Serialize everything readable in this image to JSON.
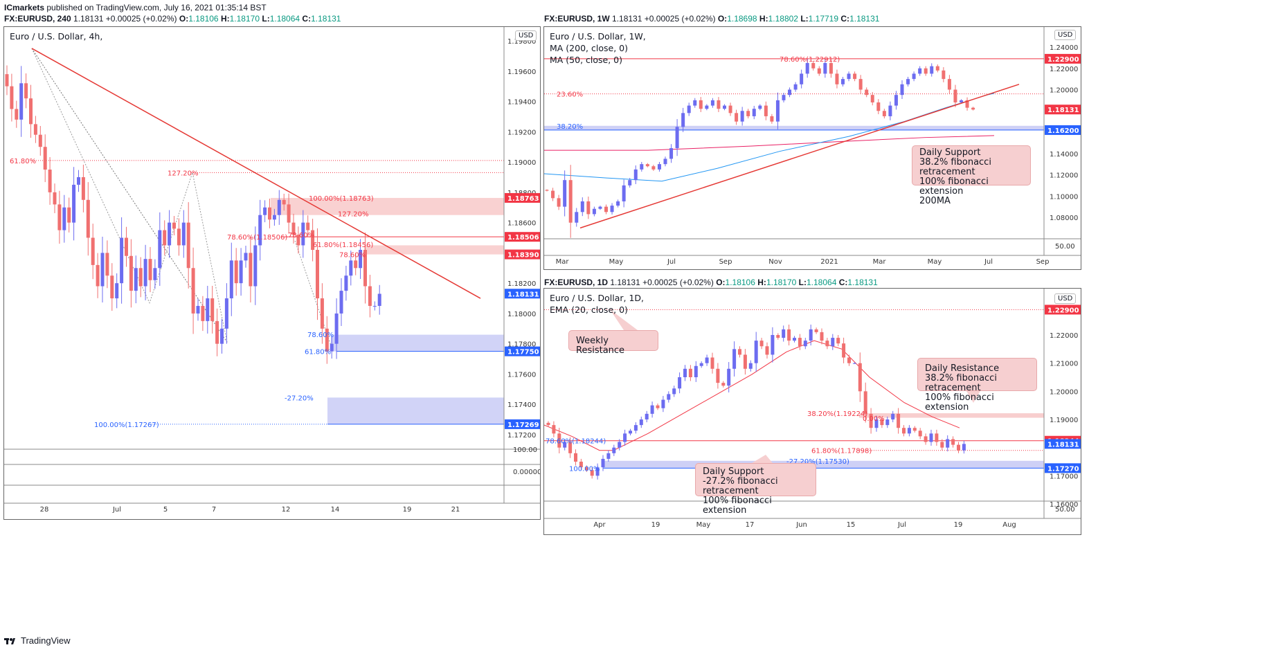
{
  "publisher": {
    "author": "ICmarkets",
    "text": "published on TradingView.com, July 16, 2021 01:35:14 BST"
  },
  "footer": {
    "brand": "TradingView"
  },
  "colors": {
    "up": "#6c6cf0",
    "down": "#f07070",
    "trend": "#e53935",
    "fibRed": "#f23645",
    "fibBlue": "#2962ff",
    "ma200": "#e91e63",
    "ma50": "#2196f3",
    "zoneBlue": "#c5c8f5",
    "zoneRed": "#f7c5c5"
  },
  "chart_data": [
    {
      "id": "h4",
      "type": "candlestick",
      "header": {
        "symbol": "FX:EURUSD, 240",
        "last": "1.18131",
        "change": "+0.00025 (+0.02%)",
        "o": "1.18106",
        "h": "1.18170",
        "l": "1.18064",
        "c": "1.18131"
      },
      "title": "Euro / U.S. Dollar, 4h,",
      "currency": "USD",
      "ylim": [
        1.1708,
        1.1988
      ],
      "y_ticks": [
        "1.19800",
        "1.19600",
        "1.19400",
        "1.19200",
        "1.19000",
        "1.18800",
        "1.18600",
        "1.18200",
        "1.18000",
        "1.17800",
        "1.17600",
        "1.17400",
        "1.17200"
      ],
      "x_ticks": [
        "28",
        "Jul",
        "5",
        "7",
        "12",
        "14",
        "19",
        "21"
      ],
      "price_tags": [
        {
          "value": 1.18763,
          "label": "1.18763",
          "color": "#f23645"
        },
        {
          "value": 1.18506,
          "label": "1.18506",
          "color": "#f23645"
        },
        {
          "value": 1.1839,
          "label": "1.18390",
          "color": "#f23645"
        },
        {
          "value": 1.18131,
          "label": "1.18131",
          "color": "#2962ff"
        },
        {
          "value": 1.1775,
          "label": "1.17750",
          "color": "#2962ff"
        },
        {
          "value": 1.17269,
          "label": "1.17269",
          "color": "#2962ff"
        }
      ],
      "fib_labels": [
        "61.80%",
        "127.20%",
        "100.00%(1.18763)",
        "127.20%",
        "78.60%(1.18506)",
        "78.60%",
        "61.80%(1.18456)",
        "78.60%",
        "78.60%",
        "61.80%",
        "-27.20%",
        "100.00%(1.17267)"
      ],
      "sub_axis": [
        "100.00",
        "0.00000"
      ],
      "closes": [
        1.195,
        1.1935,
        1.1928,
        1.1952,
        1.1942,
        1.1925,
        1.1918,
        1.191,
        1.1895,
        1.188,
        1.1872,
        1.1855,
        1.187,
        1.186,
        1.1885,
        1.189,
        1.1875,
        1.185,
        1.1832,
        1.1818,
        1.184,
        1.1825,
        1.181,
        1.182,
        1.185,
        1.1838,
        1.1815,
        1.183,
        1.1818,
        1.1836,
        1.1822,
        1.183,
        1.1855,
        1.1845,
        1.186,
        1.1856,
        1.1845,
        1.186,
        1.183,
        1.18,
        1.1805,
        1.1795,
        1.181,
        1.1795,
        1.178,
        1.179,
        1.181,
        1.1835,
        1.182,
        1.1835,
        1.184,
        1.1818,
        1.1845,
        1.1865,
        1.187,
        1.1862,
        1.1865,
        1.1875,
        1.1872,
        1.186,
        1.1852,
        1.1845,
        1.186,
        1.1855,
        1.1842,
        1.181,
        1.179,
        1.1775,
        1.178,
        1.18,
        1.1815,
        1.1825,
        1.1835,
        1.183,
        1.1842,
        1.1818,
        1.1805,
        1.1805,
        1.1813
      ]
    },
    {
      "id": "w1",
      "type": "candlestick",
      "header": {
        "symbol": "FX:EURUSD, 1W",
        "last": "1.18131",
        "change": "+0.00025 (+0.02%)",
        "o": "1.18698",
        "h": "1.18802",
        "l": "1.17719",
        "c": "1.18131"
      },
      "title": "Euro / U.S. Dollar, 1W,",
      "indicators": [
        "MA (200, close, 0)",
        "MA (50, close, 0)"
      ],
      "currency": "USD",
      "ylim": [
        1.063,
        1.248
      ],
      "y_ticks": [
        "1.24000",
        "1.22000",
        "1.20000",
        "1.18000",
        "1.14000",
        "1.12000",
        "1.10000",
        "1.08000"
      ],
      "x_ticks": [
        "Mar",
        "May",
        "Jul",
        "Sep",
        "Nov",
        "2021",
        "Mar",
        "May",
        "Jul",
        "Sep"
      ],
      "price_tags": [
        {
          "value": 1.229,
          "label": "1.22900",
          "color": "#f23645"
        },
        {
          "value": 1.18131,
          "label": "1.18131",
          "color": "#f23645"
        },
        {
          "value": 1.162,
          "label": "1.16200",
          "color": "#2962ff"
        }
      ],
      "fib_labels": [
        "78.60%(1.22912)",
        "23.60%",
        "38.20%"
      ],
      "sub_axis": [
        "50.00"
      ],
      "callout": [
        "Daily Support",
        "38.2% fibonacci retracement",
        "100% fibonacci extension",
        "200MA"
      ],
      "closes": [
        1.105,
        1.098,
        1.09,
        1.115,
        1.075,
        1.085,
        1.095,
        1.083,
        1.088,
        1.09,
        1.085,
        1.091,
        1.095,
        1.11,
        1.115,
        1.125,
        1.13,
        1.128,
        1.125,
        1.13,
        1.135,
        1.145,
        1.165,
        1.178,
        1.185,
        1.19,
        1.182,
        1.185,
        1.19,
        1.182,
        1.185,
        1.178,
        1.17,
        1.18,
        1.175,
        1.182,
        1.185,
        1.175,
        1.17,
        1.19,
        1.195,
        1.2,
        1.205,
        1.215,
        1.225,
        1.22,
        1.215,
        1.225,
        1.215,
        1.205,
        1.21,
        1.215,
        1.21,
        1.2,
        1.195,
        1.188,
        1.18,
        1.175,
        1.185,
        1.195,
        1.205,
        1.21,
        1.215,
        1.22,
        1.215,
        1.222,
        1.218,
        1.21,
        1.2,
        1.188,
        1.19,
        1.183,
        1.1813
      ]
    },
    {
      "id": "d1",
      "type": "candlestick",
      "header": {
        "symbol": "FX:EURUSD, 1D",
        "last": "1.18131",
        "change": "+0.00025 (+0.02%)",
        "o": "1.18106",
        "h": "1.18170",
        "l": "1.18064",
        "c": "1.18131"
      },
      "title": "Euro / U.S. Dollar, 1D,",
      "indicators": [
        "EMA (20, close, 0)"
      ],
      "currency": "USD",
      "ylim": [
        1.1655,
        1.229
      ],
      "y_ticks": [
        "1.22000",
        "1.21000",
        "1.20000",
        "1.19000",
        "1.17000",
        "1.16000"
      ],
      "x_ticks": [
        "Apr",
        "19",
        "May",
        "17",
        "Jun",
        "15",
        "Jul",
        "19",
        "Aug"
      ],
      "price_tags": [
        {
          "value": 1.229,
          "label": "1.22900",
          "color": "#f23645"
        },
        {
          "value": 1.18244,
          "label": "1.18244",
          "color": "#f23645"
        },
        {
          "value": 1.18131,
          "label": "1.18131",
          "color": "#2962ff"
        },
        {
          "value": 1.1727,
          "label": "1.17270",
          "color": "#2962ff"
        }
      ],
      "fib_labels": [
        "78.60%(1.18244)",
        "100.00%",
        "38.20%(1.19224)",
        "0.00%",
        "61.80%(1.17898)",
        "-27.20%(1.17530)"
      ],
      "sub_axis": [
        "50.00"
      ],
      "callouts": [
        {
          "lines": [
            "Weekly Resistance"
          ]
        },
        {
          "lines": [
            "Daily Resistance",
            "38.2% fibonacci retracement",
            "100% fibonacci extension"
          ]
        },
        {
          "lines": [
            "Daily Support",
            "-27.2% fibonacci retracement",
            "100% fibonacci extension"
          ]
        }
      ],
      "closes": [
        1.188,
        1.185,
        1.18,
        1.182,
        1.178,
        1.175,
        1.173,
        1.172,
        1.17,
        1.173,
        1.176,
        1.178,
        1.18,
        1.182,
        1.185,
        1.186,
        1.188,
        1.19,
        1.192,
        1.195,
        1.194,
        1.197,
        1.199,
        1.201,
        1.205,
        1.208,
        1.205,
        1.209,
        1.21,
        1.212,
        1.208,
        1.203,
        1.202,
        1.208,
        1.215,
        1.213,
        1.208,
        1.21,
        1.218,
        1.216,
        1.213,
        1.22,
        1.219,
        1.222,
        1.218,
        1.219,
        1.216,
        1.218,
        1.222,
        1.221,
        1.218,
        1.216,
        1.219,
        1.217,
        1.212,
        1.21,
        1.21,
        1.2,
        1.192,
        1.187,
        1.19,
        1.188,
        1.19,
        1.192,
        1.187,
        1.185,
        1.187,
        1.186,
        1.184,
        1.182,
        1.185,
        1.182,
        1.18,
        1.183,
        1.181,
        1.179,
        1.1813
      ]
    }
  ]
}
